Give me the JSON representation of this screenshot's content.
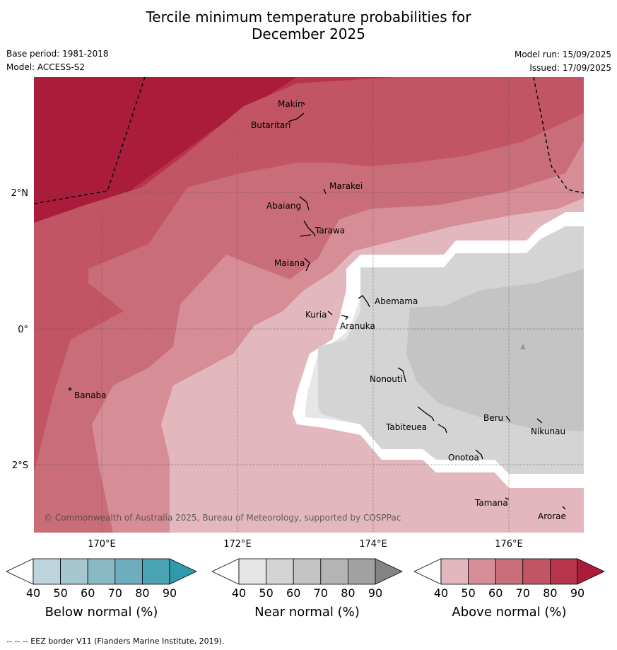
{
  "title_line1": "Tercile minimum temperature probabilities for",
  "title_line2": "December 2025",
  "base_period": "Base period: 1981-2018",
  "model": "Model: ACCESS-S2",
  "model_run": "Model run: 15/09/2025",
  "issued": "Issued: 17/09/2025",
  "copyright": "© Commonwealth of Australia 2025, Bureau of Meteorology, supported by COSPPac",
  "footer": "--  --  -- EEZ border V11 (Flanders Marine Institute, 2019).",
  "axes": {
    "lat_labels": [
      "2°N",
      "0°",
      "2°S"
    ],
    "lon_labels": [
      "170°E",
      "172°E",
      "174°E",
      "176°E"
    ]
  },
  "places": [
    {
      "name": "Makin"
    },
    {
      "name": "Butaritari"
    },
    {
      "name": "Marakei"
    },
    {
      "name": "Abaiang"
    },
    {
      "name": "Tarawa"
    },
    {
      "name": "Maiana"
    },
    {
      "name": "Abemama"
    },
    {
      "name": "Kuria"
    },
    {
      "name": "Aranuka"
    },
    {
      "name": "Banaba"
    },
    {
      "name": "Nonouti"
    },
    {
      "name": "Tabiteuea"
    },
    {
      "name": "Beru"
    },
    {
      "name": "Nikunau"
    },
    {
      "name": "Onotoa"
    },
    {
      "name": "Tamana"
    },
    {
      "name": "Arorae"
    }
  ],
  "colorbars": [
    {
      "label": "Below normal (%)",
      "ticks": [
        "40",
        "50",
        "60",
        "70",
        "80",
        "90"
      ],
      "colors": [
        "#ffffff",
        "#bed5dd",
        "#a6c7d0",
        "#8ab9c6",
        "#6eadbd",
        "#49a3b3",
        "#2f9aac"
      ]
    },
    {
      "label": "Near normal (%)",
      "ticks": [
        "40",
        "50",
        "60",
        "70",
        "80",
        "90"
      ],
      "colors": [
        "#ffffff",
        "#e6e6e6",
        "#d4d4d4",
        "#c4c4c4",
        "#b4b4b4",
        "#a2a2a2",
        "#838383"
      ]
    },
    {
      "label": "Above normal (%)",
      "ticks": [
        "40",
        "50",
        "60",
        "70",
        "80",
        "90"
      ],
      "colors": [
        "#ffffff",
        "#e2b7bd",
        "#d68d96",
        "#c96d78",
        "#c25563",
        "#b8344b",
        "#ab1c3b"
      ]
    }
  ]
}
